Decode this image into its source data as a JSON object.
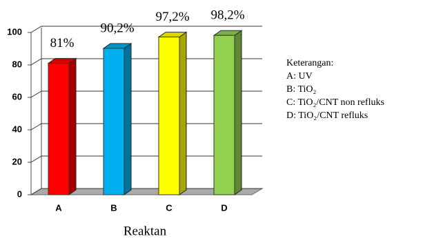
{
  "chart_data": {
    "type": "bar3d",
    "categories": [
      "A",
      "B",
      "C",
      "D"
    ],
    "values": [
      81,
      90.2,
      97.2,
      98.2
    ],
    "value_labels": [
      "81%",
      "90,2%",
      "97,2%",
      "98,2%"
    ],
    "colors": [
      "#ff0000",
      "#00b0f0",
      "#ffff00",
      "#92d050"
    ],
    "x_label": "Reaktan",
    "ylim": [
      0,
      100
    ],
    "yticks": [
      0,
      20,
      40,
      60,
      80,
      100
    ],
    "grid": true,
    "legend": {
      "title": "Keterangan:",
      "items": [
        "A: UV",
        "B: TiO₂",
        "C: TiO₂/CNT non refluks",
        "D: TiO₂/CNT refluks"
      ]
    }
  }
}
